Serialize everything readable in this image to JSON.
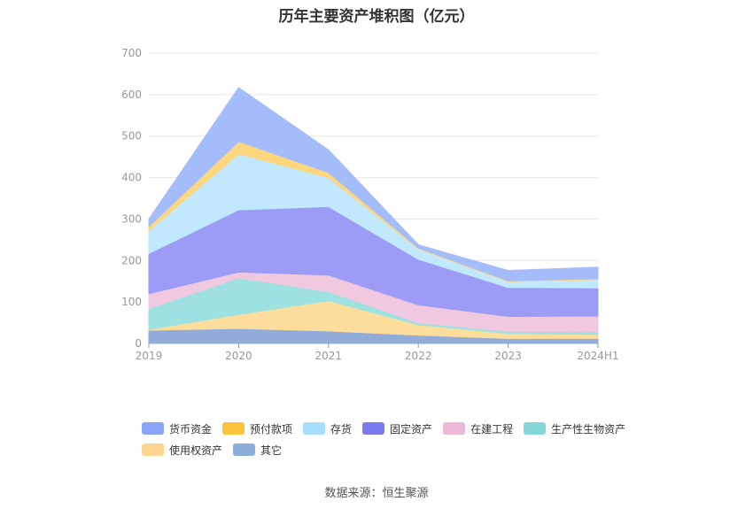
{
  "title": "历年主要资产堆积图（亿元）",
  "source": "数据来源：恒生聚源",
  "chart_data": {
    "type": "area",
    "stacked": true,
    "categories": [
      "2019",
      "2020",
      "2021",
      "2022",
      "2023",
      "2024H1"
    ],
    "ylim": [
      0,
      700
    ],
    "yticks": [
      0,
      100,
      200,
      300,
      400,
      500,
      600,
      700
    ],
    "grid": true,
    "legend_position": "bottom",
    "series": [
      {
        "name": "其它",
        "color": "#91acd9",
        "values": [
          32,
          36,
          30,
          20,
          12,
          12
        ]
      },
      {
        "name": "使用权资产",
        "color": "#fddd9c",
        "values": [
          2,
          34,
          73,
          25,
          12,
          10
        ]
      },
      {
        "name": "生产性生物资产",
        "color": "#9ee1e1",
        "values": [
          50,
          88,
          22,
          5,
          5,
          6
        ]
      },
      {
        "name": "在建工程",
        "color": "#f0c8e0",
        "values": [
          36,
          14,
          40,
          43,
          36,
          38
        ]
      },
      {
        "name": "固定资产",
        "color": "#9c9cf7",
        "values": [
          97,
          150,
          165,
          110,
          70,
          68
        ]
      },
      {
        "name": "存货",
        "color": "#c2e8fd",
        "values": [
          55,
          135,
          70,
          25,
          14,
          20
        ]
      },
      {
        "name": "预付款项",
        "color": "#fdd67e",
        "values": [
          10,
          30,
          12,
          2,
          2,
          2
        ]
      },
      {
        "name": "货币资金",
        "color": "#a5bcfb",
        "values": [
          18,
          130,
          55,
          8,
          25,
          28
        ]
      }
    ],
    "legend": [
      {
        "name": "货币资金",
        "color": "#8aa4f8"
      },
      {
        "name": "预付款项",
        "color": "#fcc43c"
      },
      {
        "name": "存货",
        "color": "#a9ddfc"
      },
      {
        "name": "固定资产",
        "color": "#7b7bf0"
      },
      {
        "name": "在建工程",
        "color": "#ebb8d8"
      },
      {
        "name": "生产性生物资产",
        "color": "#85d7d7"
      },
      {
        "name": "使用权资产",
        "color": "#fdd591"
      },
      {
        "name": "其它",
        "color": "#8caedb"
      }
    ]
  }
}
